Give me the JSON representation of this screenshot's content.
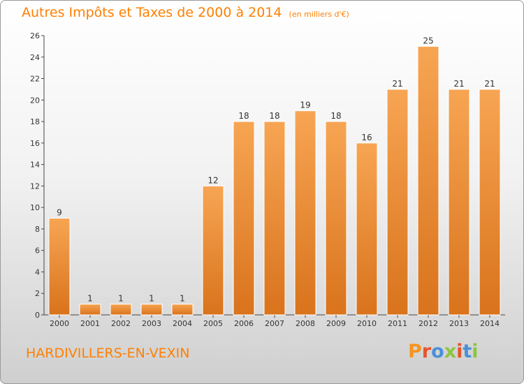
{
  "header": {
    "title": "Autres Impôts et Taxes de 2000 à 2014",
    "unit_note": "(en milliers d'€)"
  },
  "footer": {
    "commune": "HARDIVILLERS-EN-VEXIN",
    "logo_text": "Proxiti"
  },
  "colors": {
    "accent": "#ff7f00",
    "bar_top": "#f7a553",
    "bar_bottom": "#d9731c",
    "logo_letters": [
      "#f7931e",
      "#e8542b",
      "#4a90d9",
      "#8cc63f",
      "#e8542b",
      "#4a90d9",
      "#8cc63f"
    ]
  },
  "chart_data": {
    "type": "bar",
    "title": "Autres Impôts et Taxes de 2000 à 2014",
    "subtitle": "(en milliers d'€)",
    "categories": [
      "2000",
      "2001",
      "2002",
      "2003",
      "2004",
      "2005",
      "2006",
      "2007",
      "2008",
      "2009",
      "2010",
      "2011",
      "2012",
      "2013",
      "2014"
    ],
    "values": [
      9,
      1,
      1,
      1,
      1,
      12,
      18,
      18,
      19,
      18,
      16,
      21,
      25,
      21,
      21
    ],
    "ylim": [
      0,
      26
    ],
    "yticks": [
      0,
      2,
      4,
      6,
      8,
      10,
      12,
      14,
      16,
      18,
      20,
      22,
      24,
      26
    ],
    "grid": false,
    "data_labels": true
  }
}
